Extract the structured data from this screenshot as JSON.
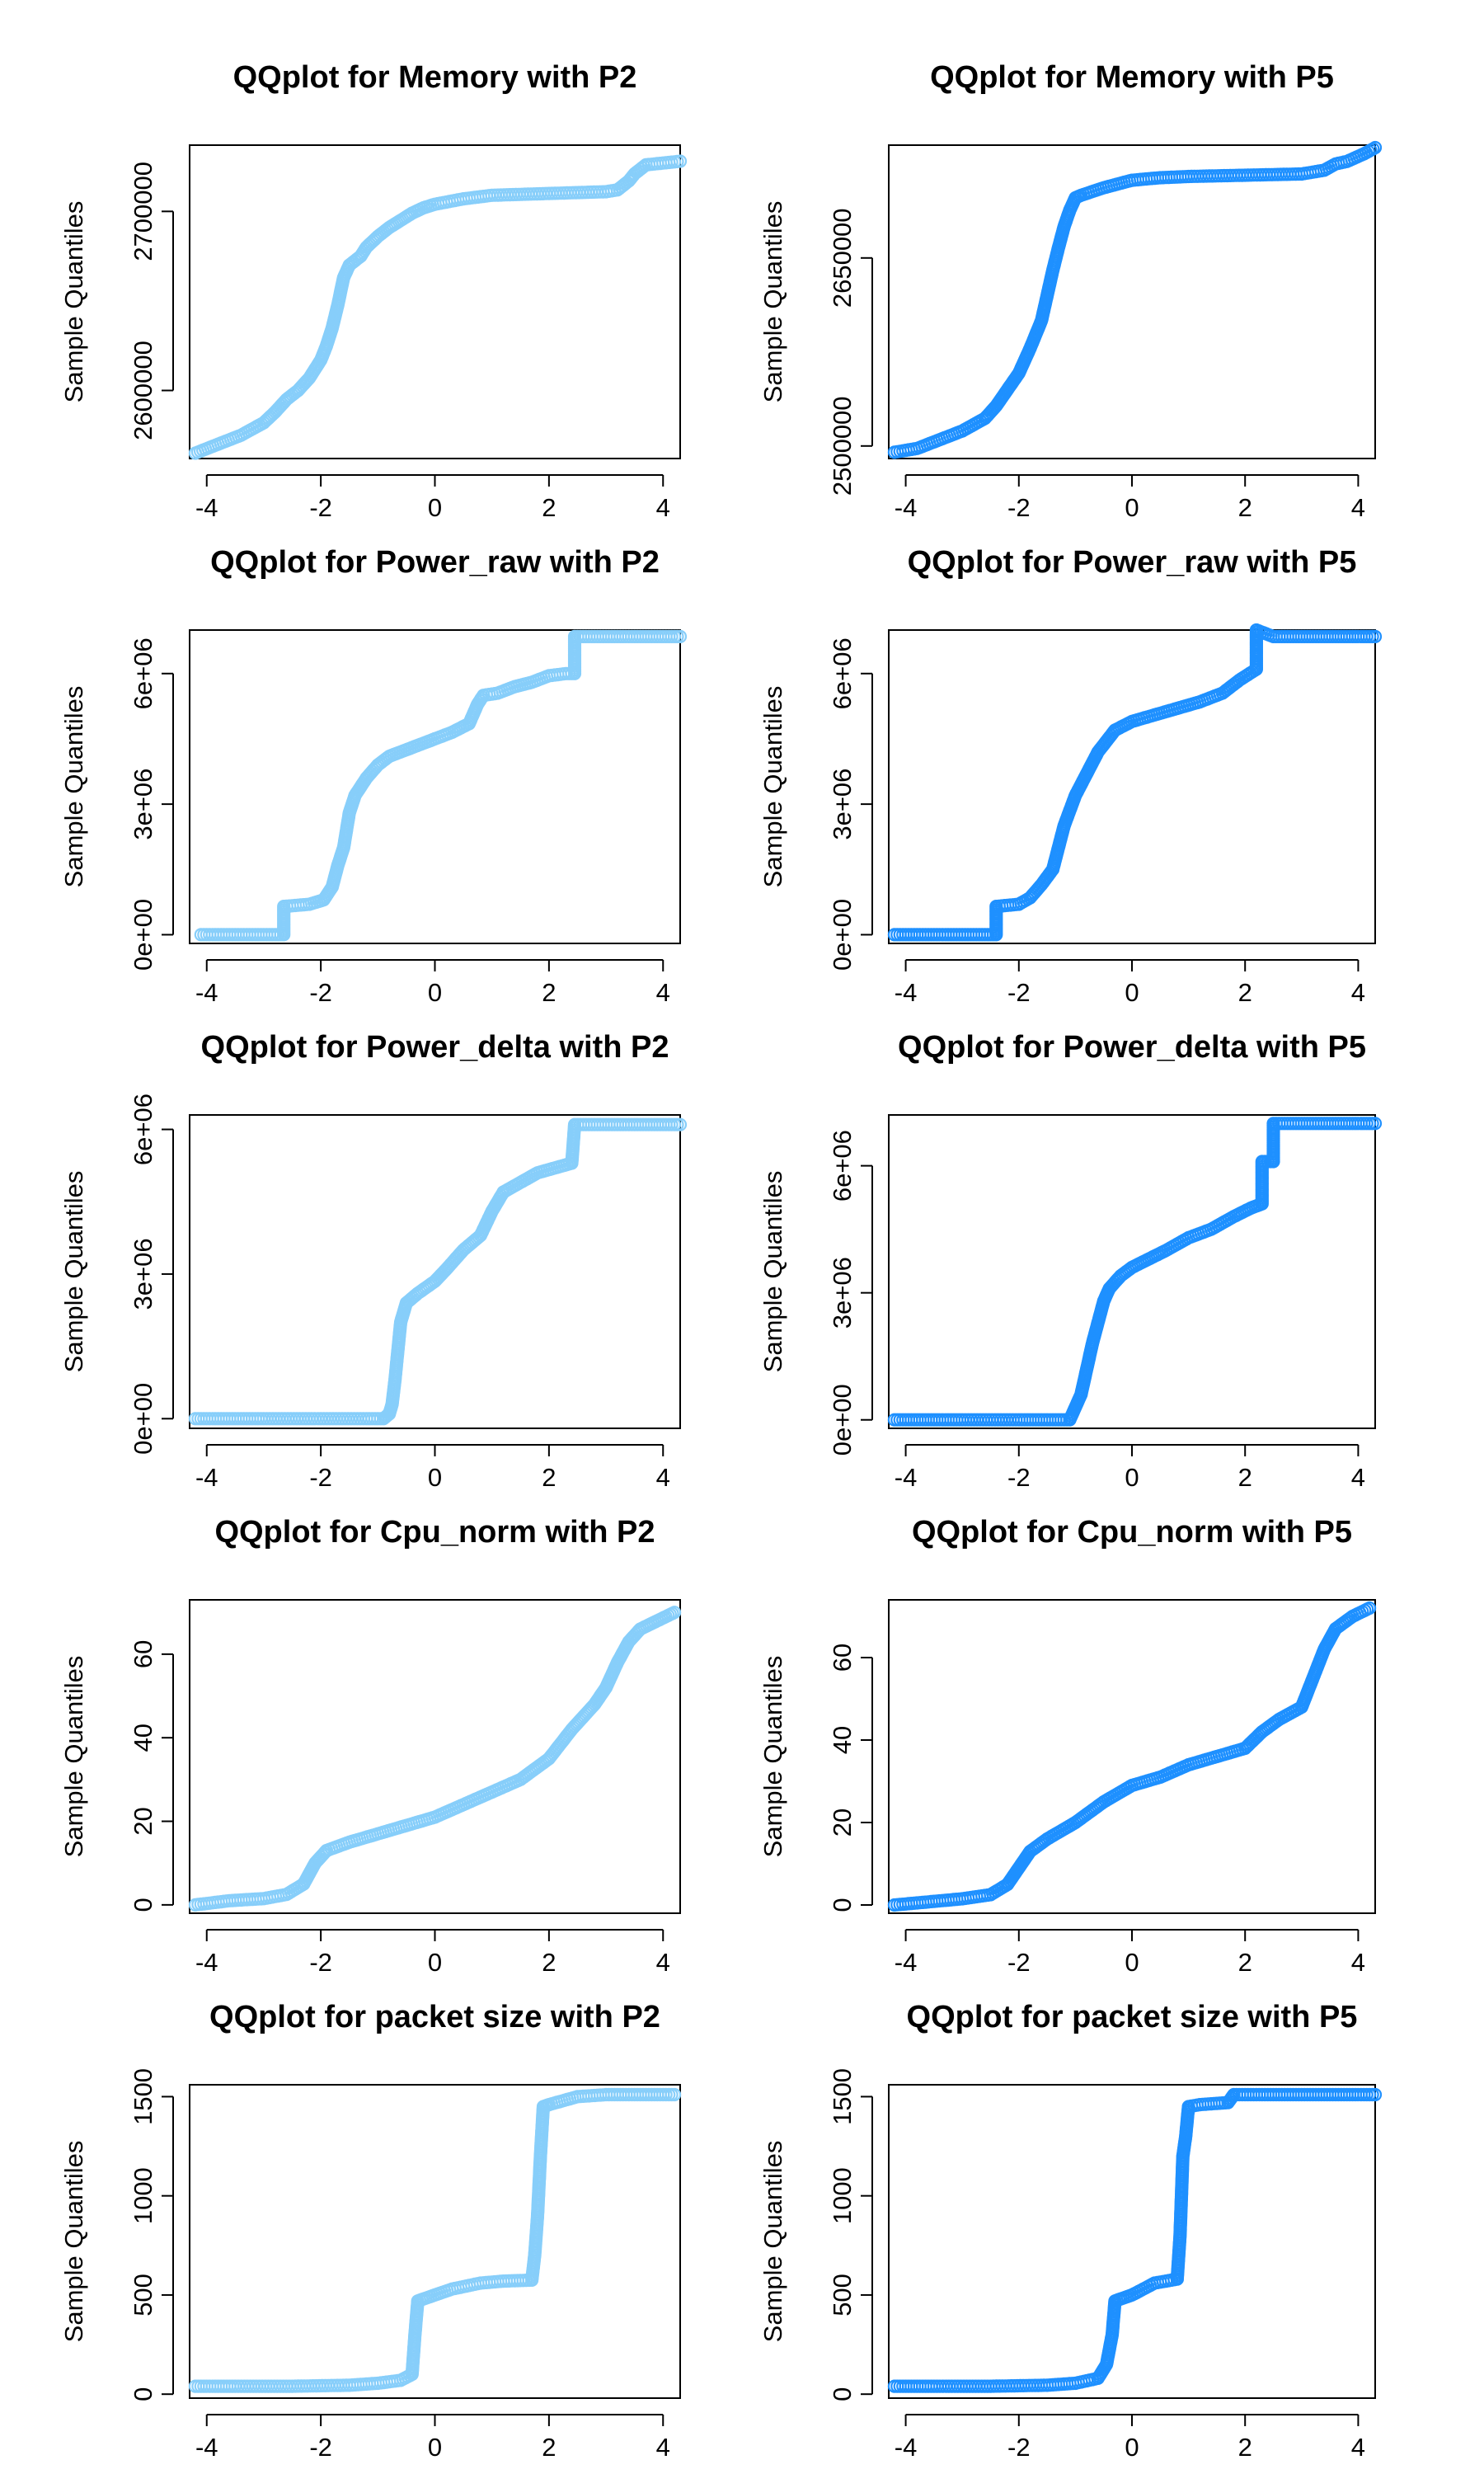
{
  "figure": {
    "background": "#ffffff"
  },
  "chart_data": [
    {
      "type": "scatter",
      "title": "QQplot for Memory with P2",
      "xlabel": "",
      "ylabel": "Sample Quantiles",
      "color": "#87CEFA",
      "xlim": [
        -4.3,
        4.3
      ],
      "ylim": [
        2562000,
        2737000
      ],
      "x_ticks": [
        -4,
        -2,
        0,
        2,
        4
      ],
      "y_ticks": [
        2600000,
        2700000
      ],
      "grid": false,
      "curve": [
        [
          -4.2,
          2565000
        ],
        [
          -3.8,
          2570000
        ],
        [
          -3.4,
          2575000
        ],
        [
          -3.0,
          2582000
        ],
        [
          -2.8,
          2588000
        ],
        [
          -2.6,
          2595000
        ],
        [
          -2.4,
          2600000
        ],
        [
          -2.2,
          2607000
        ],
        [
          -2.0,
          2617000
        ],
        [
          -1.9,
          2625000
        ],
        [
          -1.8,
          2635000
        ],
        [
          -1.7,
          2648000
        ],
        [
          -1.6,
          2663000
        ],
        [
          -1.5,
          2670000
        ],
        [
          -1.3,
          2675000
        ],
        [
          -1.2,
          2680000
        ],
        [
          -1.0,
          2686000
        ],
        [
          -0.8,
          2691000
        ],
        [
          -0.6,
          2695000
        ],
        [
          -0.4,
          2699000
        ],
        [
          -0.2,
          2702000
        ],
        [
          0.0,
          2704000
        ],
        [
          0.5,
          2707000
        ],
        [
          1.0,
          2709000
        ],
        [
          2.0,
          2710000
        ],
        [
          3.0,
          2711000
        ],
        [
          3.2,
          2712000
        ],
        [
          3.4,
          2717000
        ],
        [
          3.5,
          2721000
        ],
        [
          3.7,
          2726000
        ],
        [
          4.0,
          2727000
        ],
        [
          4.3,
          2728000
        ]
      ]
    },
    {
      "type": "scatter",
      "title": "QQplot for Memory with P5",
      "xlabel": "",
      "ylabel": "Sample Quantiles",
      "color": "#1E90FF",
      "xlim": [
        -4.3,
        4.3
      ],
      "ylim": [
        2490000,
        2740000
      ],
      "x_ticks": [
        -4,
        -2,
        0,
        2,
        4
      ],
      "y_ticks": [
        2500000,
        2650000
      ],
      "grid": false,
      "curve": [
        [
          -4.2,
          2495000
        ],
        [
          -3.8,
          2498000
        ],
        [
          -3.4,
          2505000
        ],
        [
          -3.0,
          2512000
        ],
        [
          -2.6,
          2522000
        ],
        [
          -2.4,
          2532000
        ],
        [
          -2.2,
          2545000
        ],
        [
          -2.0,
          2558000
        ],
        [
          -1.8,
          2578000
        ],
        [
          -1.6,
          2600000
        ],
        [
          -1.5,
          2620000
        ],
        [
          -1.4,
          2640000
        ],
        [
          -1.3,
          2658000
        ],
        [
          -1.2,
          2675000
        ],
        [
          -1.1,
          2688000
        ],
        [
          -1.0,
          2698000
        ],
        [
          -0.9,
          2700000
        ],
        [
          -0.5,
          2706000
        ],
        [
          0.0,
          2712000
        ],
        [
          0.5,
          2714000
        ],
        [
          1.0,
          2715000
        ],
        [
          2.0,
          2716000
        ],
        [
          3.0,
          2717000
        ],
        [
          3.4,
          2720000
        ],
        [
          3.6,
          2725000
        ],
        [
          3.8,
          2727000
        ],
        [
          4.1,
          2733000
        ],
        [
          4.3,
          2738000
        ]
      ]
    },
    {
      "type": "scatter",
      "title": "QQplot for Power_raw with P2",
      "xlabel": "",
      "ylabel": "Sample Quantiles",
      "color": "#87CEFA",
      "xlim": [
        -4.3,
        4.3
      ],
      "ylim": [
        -200000,
        7000000
      ],
      "x_ticks": [
        -4,
        -2,
        0,
        2,
        4
      ],
      "y_ticks": [
        0,
        3000000,
        6000000
      ],
      "y_tick_labels": [
        "0e+00",
        "3e+06",
        "6e+06"
      ],
      "grid": false,
      "curve": [
        [
          -4.1,
          0
        ],
        [
          -3.5,
          0
        ],
        [
          -3.0,
          0
        ],
        [
          -2.65,
          0
        ],
        [
          -2.65,
          650000
        ],
        [
          -2.2,
          700000
        ],
        [
          -1.95,
          800000
        ],
        [
          -1.8,
          1100000
        ],
        [
          -1.7,
          1600000
        ],
        [
          -1.6,
          2000000
        ],
        [
          -1.5,
          2800000
        ],
        [
          -1.4,
          3200000
        ],
        [
          -1.2,
          3600000
        ],
        [
          -1.0,
          3900000
        ],
        [
          -0.8,
          4100000
        ],
        [
          -0.6,
          4200000
        ],
        [
          -0.4,
          4300000
        ],
        [
          -0.2,
          4400000
        ],
        [
          0.0,
          4500000
        ],
        [
          0.3,
          4650000
        ],
        [
          0.6,
          4850000
        ],
        [
          0.75,
          5300000
        ],
        [
          0.85,
          5500000
        ],
        [
          1.1,
          5550000
        ],
        [
          1.4,
          5700000
        ],
        [
          1.7,
          5800000
        ],
        [
          2.0,
          5950000
        ],
        [
          2.3,
          6000000
        ],
        [
          2.45,
          6000000
        ],
        [
          2.45,
          6850000
        ],
        [
          3.0,
          6850000
        ],
        [
          3.5,
          6850000
        ],
        [
          4.0,
          6850000
        ],
        [
          4.3,
          6850000
        ]
      ]
    },
    {
      "type": "scatter",
      "title": "QQplot for Power_raw with P5",
      "xlabel": "",
      "ylabel": "Sample Quantiles",
      "color": "#1E90FF",
      "xlim": [
        -4.3,
        4.3
      ],
      "ylim": [
        -200000,
        7000000
      ],
      "x_ticks": [
        -4,
        -2,
        0,
        2,
        4
      ],
      "y_ticks": [
        0,
        3000000,
        6000000
      ],
      "y_tick_labels": [
        "0e+00",
        "3e+06",
        "6e+06"
      ],
      "grid": false,
      "curve": [
        [
          -4.2,
          0
        ],
        [
          -3.5,
          0
        ],
        [
          -3.0,
          0
        ],
        [
          -2.4,
          0
        ],
        [
          -2.4,
          650000
        ],
        [
          -2.0,
          700000
        ],
        [
          -1.8,
          850000
        ],
        [
          -1.6,
          1150000
        ],
        [
          -1.4,
          1500000
        ],
        [
          -1.3,
          2000000
        ],
        [
          -1.2,
          2500000
        ],
        [
          -1.0,
          3200000
        ],
        [
          -0.8,
          3700000
        ],
        [
          -0.6,
          4200000
        ],
        [
          -0.3,
          4700000
        ],
        [
          0.0,
          4900000
        ],
        [
          0.4,
          5050000
        ],
        [
          0.8,
          5200000
        ],
        [
          1.2,
          5350000
        ],
        [
          1.6,
          5550000
        ],
        [
          1.9,
          5850000
        ],
        [
          2.2,
          6100000
        ],
        [
          2.2,
          7000000
        ],
        [
          2.5,
          6850000
        ],
        [
          3.0,
          6850000
        ],
        [
          3.5,
          6850000
        ],
        [
          4.0,
          6850000
        ],
        [
          4.3,
          6850000
        ]
      ]
    },
    {
      "type": "scatter",
      "title": "QQplot for Power_delta with P2",
      "xlabel": "",
      "ylabel": "Sample Quantiles",
      "color": "#87CEFA",
      "xlim": [
        -4.3,
        4.3
      ],
      "ylim": [
        -200000,
        6300000
      ],
      "x_ticks": [
        -4,
        -2,
        0,
        2,
        4
      ],
      "y_ticks": [
        0,
        3000000,
        6000000
      ],
      "y_tick_labels": [
        "0e+00",
        "3e+06",
        "6e+06"
      ],
      "grid": false,
      "curve": [
        [
          -4.2,
          0
        ],
        [
          -3.5,
          0
        ],
        [
          -3.0,
          0
        ],
        [
          -2.0,
          0
        ],
        [
          -1.2,
          0
        ],
        [
          -0.9,
          0
        ],
        [
          -0.8,
          100000
        ],
        [
          -0.75,
          300000
        ],
        [
          -0.7,
          800000
        ],
        [
          -0.65,
          1400000
        ],
        [
          -0.6,
          2000000
        ],
        [
          -0.5,
          2400000
        ],
        [
          -0.3,
          2600000
        ],
        [
          0.0,
          2850000
        ],
        [
          0.2,
          3100000
        ],
        [
          0.5,
          3500000
        ],
        [
          0.8,
          3800000
        ],
        [
          1.0,
          4300000
        ],
        [
          1.2,
          4700000
        ],
        [
          1.5,
          4900000
        ],
        [
          1.8,
          5100000
        ],
        [
          2.1,
          5200000
        ],
        [
          2.4,
          5300000
        ],
        [
          2.45,
          6100000
        ],
        [
          3.0,
          6100000
        ],
        [
          3.5,
          6100000
        ],
        [
          4.0,
          6100000
        ],
        [
          4.3,
          6100000
        ]
      ]
    },
    {
      "type": "scatter",
      "title": "QQplot for Power_delta with P5",
      "xlabel": "",
      "ylabel": "Sample Quantiles",
      "color": "#1E90FF",
      "xlim": [
        -4.3,
        4.3
      ],
      "ylim": [
        -200000,
        7200000
      ],
      "x_ticks": [
        -4,
        -2,
        0,
        2,
        4
      ],
      "y_ticks": [
        0,
        3000000,
        6000000
      ],
      "y_tick_labels": [
        "0e+00",
        "3e+06",
        "6e+06"
      ],
      "grid": false,
      "curve": [
        [
          -4.2,
          0
        ],
        [
          -3.5,
          0
        ],
        [
          -3.0,
          0
        ],
        [
          -2.0,
          0
        ],
        [
          -1.3,
          0
        ],
        [
          -1.1,
          0
        ],
        [
          -1.0,
          300000
        ],
        [
          -0.9,
          600000
        ],
        [
          -0.8,
          1200000
        ],
        [
          -0.7,
          1800000
        ],
        [
          -0.6,
          2300000
        ],
        [
          -0.5,
          2800000
        ],
        [
          -0.4,
          3100000
        ],
        [
          -0.2,
          3400000
        ],
        [
          0.0,
          3600000
        ],
        [
          0.3,
          3800000
        ],
        [
          0.6,
          4000000
        ],
        [
          1.0,
          4300000
        ],
        [
          1.4,
          4500000
        ],
        [
          1.8,
          4800000
        ],
        [
          2.1,
          5000000
        ],
        [
          2.3,
          5100000
        ],
        [
          2.3,
          6100000
        ],
        [
          2.5,
          6100000
        ],
        [
          2.5,
          7000000
        ],
        [
          3.0,
          7000000
        ],
        [
          3.5,
          7000000
        ],
        [
          4.0,
          7000000
        ],
        [
          4.3,
          7000000
        ]
      ]
    },
    {
      "type": "scatter",
      "title": "QQplot for Cpu_norm with P2",
      "xlabel": "",
      "ylabel": "Sample Quantiles",
      "color": "#87CEFA",
      "xlim": [
        -4.3,
        4.3
      ],
      "ylim": [
        -2,
        73
      ],
      "x_ticks": [
        -4,
        -2,
        0,
        2,
        4
      ],
      "y_ticks": [
        0,
        20,
        40,
        60
      ],
      "grid": false,
      "curve": [
        [
          -4.2,
          0
        ],
        [
          -3.9,
          0.5
        ],
        [
          -3.6,
          1
        ],
        [
          -3.0,
          1.5
        ],
        [
          -2.6,
          2.5
        ],
        [
          -2.3,
          5
        ],
        [
          -2.1,
          10
        ],
        [
          -1.9,
          13
        ],
        [
          -1.5,
          15
        ],
        [
          -1.0,
          17
        ],
        [
          -0.5,
          19
        ],
        [
          0.0,
          21
        ],
        [
          0.5,
          24
        ],
        [
          1.0,
          27
        ],
        [
          1.5,
          30
        ],
        [
          2.0,
          35
        ],
        [
          2.4,
          42
        ],
        [
          2.8,
          48
        ],
        [
          3.0,
          52
        ],
        [
          3.2,
          58
        ],
        [
          3.4,
          63
        ],
        [
          3.6,
          66
        ],
        [
          3.9,
          68
        ],
        [
          4.2,
          70
        ]
      ]
    },
    {
      "type": "scatter",
      "title": "QQplot for Cpu_norm with P5",
      "xlabel": "",
      "ylabel": "Sample Quantiles",
      "color": "#1E90FF",
      "xlim": [
        -4.3,
        4.3
      ],
      "ylim": [
        -2,
        74
      ],
      "x_ticks": [
        -4,
        -2,
        0,
        2,
        4
      ],
      "y_ticks": [
        0,
        20,
        40,
        60
      ],
      "grid": false,
      "curve": [
        [
          -4.2,
          0
        ],
        [
          -3.8,
          0.5
        ],
        [
          -3.4,
          1
        ],
        [
          -3.0,
          1.5
        ],
        [
          -2.5,
          2.5
        ],
        [
          -2.2,
          5
        ],
        [
          -2.0,
          9
        ],
        [
          -1.8,
          13
        ],
        [
          -1.5,
          16
        ],
        [
          -1.0,
          20
        ],
        [
          -0.5,
          25
        ],
        [
          0.0,
          29
        ],
        [
          0.5,
          31
        ],
        [
          1.0,
          34
        ],
        [
          1.5,
          36
        ],
        [
          2.0,
          38
        ],
        [
          2.3,
          42
        ],
        [
          2.6,
          45
        ],
        [
          3.0,
          48
        ],
        [
          3.2,
          55
        ],
        [
          3.4,
          62
        ],
        [
          3.6,
          67
        ],
        [
          3.9,
          70
        ],
        [
          4.2,
          72
        ]
      ]
    },
    {
      "type": "scatter",
      "title": "QQplot for packet size with P2",
      "xlabel": "",
      "ylabel": "Sample Quantiles",
      "color": "#87CEFA",
      "xlim": [
        -4.3,
        4.3
      ],
      "ylim": [
        -20,
        1560
      ],
      "x_ticks": [
        -4,
        -2,
        0,
        2,
        4
      ],
      "y_ticks": [
        0,
        500,
        1000,
        1500
      ],
      "grid": false,
      "curve": [
        [
          -4.2,
          40
        ],
        [
          -3.5,
          40
        ],
        [
          -2.5,
          40
        ],
        [
          -1.5,
          45
        ],
        [
          -1.0,
          55
        ],
        [
          -0.6,
          70
        ],
        [
          -0.4,
          100
        ],
        [
          -0.35,
          300
        ],
        [
          -0.3,
          470
        ],
        [
          -0.2,
          480
        ],
        [
          0.0,
          500
        ],
        [
          0.3,
          530
        ],
        [
          0.8,
          560
        ],
        [
          1.2,
          570
        ],
        [
          1.7,
          575
        ],
        [
          1.75,
          700
        ],
        [
          1.8,
          900
        ],
        [
          1.85,
          1200
        ],
        [
          1.9,
          1450
        ],
        [
          2.0,
          1460
        ],
        [
          2.5,
          1500
        ],
        [
          3.0,
          1510
        ],
        [
          3.5,
          1510
        ],
        [
          4.0,
          1510
        ],
        [
          4.2,
          1510
        ]
      ]
    },
    {
      "type": "scatter",
      "title": "QQplot for packet size with P5",
      "xlabel": "",
      "ylabel": "Sample Quantiles",
      "color": "#1E90FF",
      "xlim": [
        -4.3,
        4.3
      ],
      "ylim": [
        -20,
        1560
      ],
      "x_ticks": [
        -4,
        -2,
        0,
        2,
        4
      ],
      "y_ticks": [
        0,
        500,
        1000,
        1500
      ],
      "grid": false,
      "curve": [
        [
          -4.2,
          40
        ],
        [
          -3.5,
          40
        ],
        [
          -2.5,
          40
        ],
        [
          -1.5,
          45
        ],
        [
          -1.0,
          55
        ],
        [
          -0.6,
          80
        ],
        [
          -0.45,
          150
        ],
        [
          -0.35,
          300
        ],
        [
          -0.3,
          470
        ],
        [
          -0.2,
          480
        ],
        [
          0.0,
          500
        ],
        [
          0.4,
          560
        ],
        [
          0.8,
          580
        ],
        [
          0.85,
          800
        ],
        [
          0.9,
          1200
        ],
        [
          0.95,
          1300
        ],
        [
          1.0,
          1450
        ],
        [
          1.2,
          1460
        ],
        [
          1.7,
          1470
        ],
        [
          1.8,
          1510
        ],
        [
          2.5,
          1510
        ],
        [
          3.0,
          1510
        ],
        [
          3.5,
          1510
        ],
        [
          4.0,
          1510
        ],
        [
          4.3,
          1510
        ]
      ]
    }
  ]
}
